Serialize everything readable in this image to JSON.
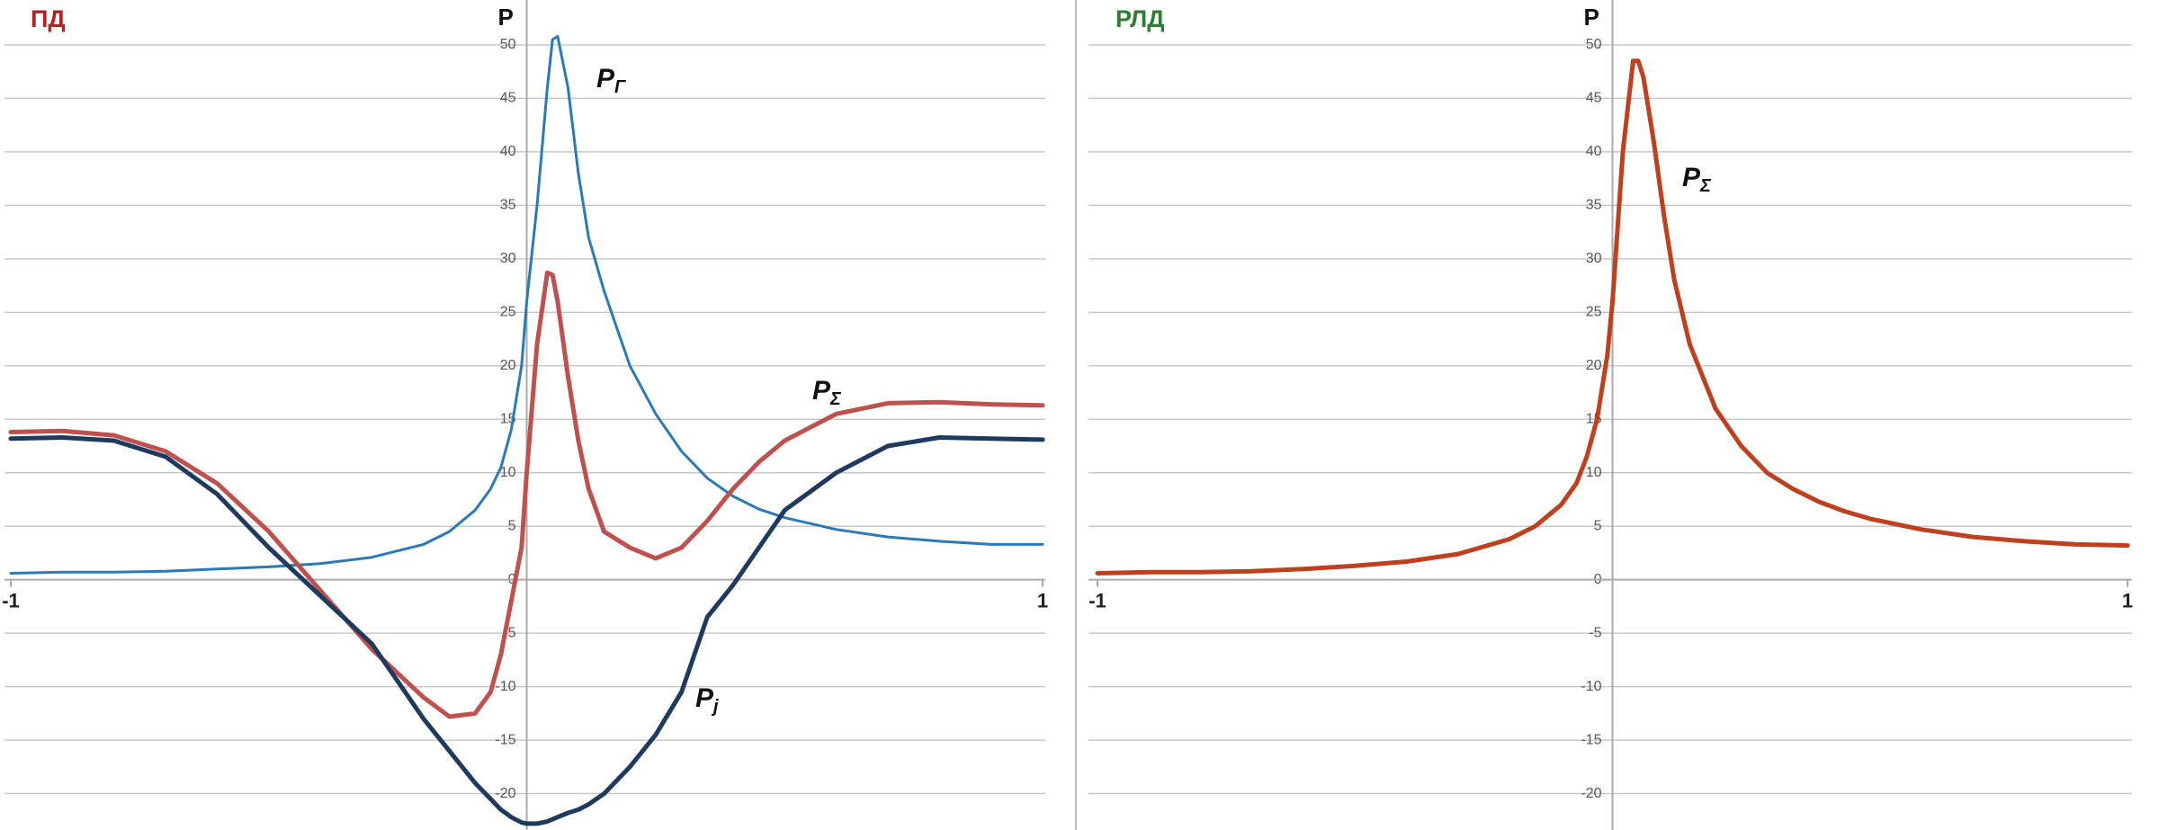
{
  "chart_data": [
    {
      "type": "line",
      "title": "ПД",
      "ylabel": "P",
      "x": [
        -1,
        -0.9,
        -0.8,
        -0.7,
        -0.6,
        -0.5,
        -0.4,
        -0.3,
        -0.2,
        -0.15,
        -0.1,
        -0.07,
        -0.05,
        -0.03,
        -0.01,
        0,
        0.02,
        0.04,
        0.05,
        0.06,
        0.08,
        0.1,
        0.12,
        0.15,
        0.2,
        0.25,
        0.3,
        0.35,
        0.4,
        0.45,
        0.5,
        0.6,
        0.7,
        0.8,
        0.9,
        1
      ],
      "series": [
        {
          "name": "P",
          "subscript": "Г",
          "color": "#2a7ab8",
          "values": [
            0.6,
            0.7,
            0.7,
            0.8,
            1.0,
            1.2,
            1.5,
            2.1,
            3.3,
            4.5,
            6.5,
            8.5,
            10.5,
            14,
            20,
            26,
            35,
            46,
            50.5,
            50.8,
            46,
            38,
            32,
            27,
            20,
            15.5,
            12,
            9.5,
            7.8,
            6.6,
            5.8,
            4.7,
            4.0,
            3.6,
            3.3,
            3.3
          ]
        },
        {
          "name": "P",
          "subscript": "Σ",
          "color": "#c0504d",
          "values": [
            13.8,
            13.9,
            13.5,
            12,
            9,
            4.5,
            -1,
            -6.5,
            -11,
            -12.8,
            -12.5,
            -10.5,
            -7,
            -2,
            3,
            10,
            22,
            28.7,
            28.5,
            26,
            19,
            13,
            8.5,
            4.5,
            3,
            2.0,
            3,
            5.5,
            8.5,
            11,
            13,
            15.5,
            16.5,
            16.6,
            16.4,
            16.3
          ]
        },
        {
          "name": "P",
          "subscript": "j",
          "color": "#1f3a5f",
          "values": [
            13.2,
            13.3,
            13,
            11.5,
            8,
            3,
            -1.5,
            -6,
            -13,
            -16,
            -19,
            -20.5,
            -21.5,
            -22.2,
            -22.7,
            -22.8,
            -22.8,
            -22.6,
            -22.4,
            -22.2,
            -21.8,
            -21.5,
            -21,
            -20,
            -17.5,
            -14.5,
            -10.5,
            -3.5,
            -0.5,
            3,
            6.5,
            10,
            12.5,
            13.3,
            13.2,
            13.1
          ]
        }
      ],
      "xlim": [
        -1,
        1
      ],
      "xticks": [
        -1,
        1
      ],
      "ylim": [
        -23.4,
        54.2
      ],
      "yticks": [
        -20,
        -15,
        -10,
        -5,
        0,
        5,
        10,
        15,
        20,
        25,
        30,
        35,
        40,
        45,
        50
      ],
      "grid": true
    },
    {
      "type": "line",
      "title": "РЛД",
      "ylabel": "P",
      "x": [
        -1,
        -0.9,
        -0.8,
        -0.7,
        -0.6,
        -0.5,
        -0.4,
        -0.3,
        -0.2,
        -0.15,
        -0.1,
        -0.07,
        -0.05,
        -0.03,
        -0.01,
        0,
        0.02,
        0.04,
        0.05,
        0.06,
        0.08,
        0.1,
        0.12,
        0.15,
        0.2,
        0.25,
        0.3,
        0.35,
        0.4,
        0.45,
        0.5,
        0.6,
        0.7,
        0.8,
        0.9,
        1
      ],
      "series": [
        {
          "name": "P",
          "subscript": "Σ",
          "color": "#c0401e",
          "values": [
            0.6,
            0.7,
            0.7,
            0.8,
            1.0,
            1.3,
            1.7,
            2.4,
            3.8,
            5,
            7,
            9,
            11.5,
            15,
            21,
            26,
            40,
            48.5,
            48.5,
            47,
            41,
            34,
            28,
            22,
            16,
            12.5,
            10,
            8.5,
            7.3,
            6.4,
            5.7,
            4.7,
            4.0,
            3.6,
            3.3,
            3.2
          ]
        }
      ],
      "xlim": [
        -1,
        1
      ],
      "xticks": [
        -1,
        1
      ],
      "ylim": [
        -23.4,
        54.2
      ],
      "yticks": [
        -20,
        -15,
        -10,
        -5,
        0,
        5,
        10,
        15,
        20,
        25,
        30,
        35,
        40,
        45,
        50
      ],
      "grid": true
    }
  ]
}
